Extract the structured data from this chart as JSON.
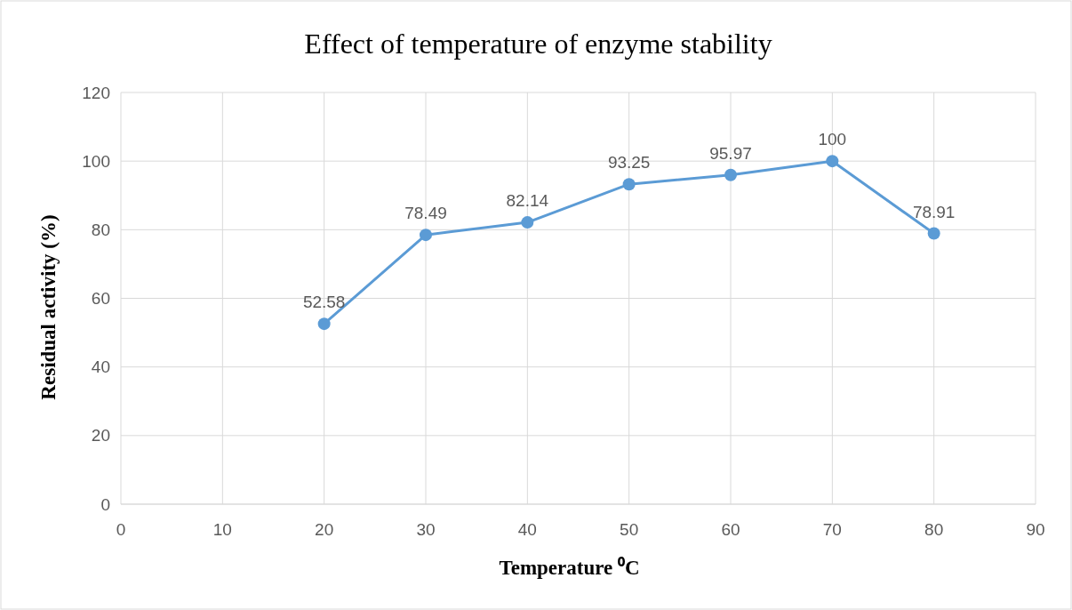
{
  "chart_data": {
    "type": "line",
    "title": "Effect of temperature of enzyme stability",
    "xlabel": "Temperature ⁰C",
    "ylabel": "Residual activity (%)",
    "x": [
      20,
      30,
      40,
      50,
      60,
      70,
      80
    ],
    "series": [
      {
        "color": "#5b9bd5",
        "values": [
          52.58,
          78.49,
          82.14,
          93.25,
          95.97,
          100,
          78.91
        ]
      }
    ],
    "xlim": [
      0,
      90
    ],
    "xticks": [
      0,
      10,
      20,
      30,
      40,
      50,
      60,
      70,
      80,
      90
    ],
    "ylim": [
      0,
      120
    ],
    "yticks": [
      0,
      20,
      40,
      60,
      80,
      100,
      120
    ],
    "grid": true,
    "marker": "circle",
    "line_style": "solid",
    "data_labels": true
  }
}
